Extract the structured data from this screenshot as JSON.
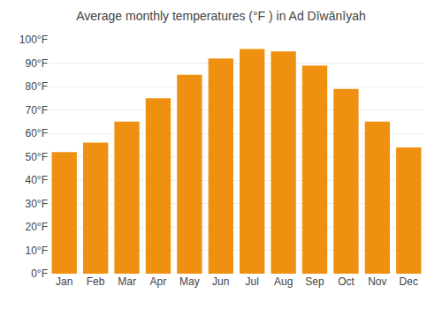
{
  "chart_data": {
    "type": "bar",
    "title": "Average monthly temperatures (°F ) in Ad Dīwānīyah",
    "categories": [
      "Jan",
      "Feb",
      "Mar",
      "Apr",
      "May",
      "Jun",
      "Jul",
      "Aug",
      "Sep",
      "Oct",
      "Nov",
      "Dec"
    ],
    "values": [
      52,
      56,
      65,
      75,
      85,
      92,
      96,
      95,
      89,
      79,
      65,
      54
    ],
    "color": "#F09010",
    "ylim": [
      0,
      100
    ],
    "yticks": [
      {
        "value": 0,
        "label": "0°F"
      },
      {
        "value": 10,
        "label": "10°F"
      },
      {
        "value": 20,
        "label": "20°F"
      },
      {
        "value": 30,
        "label": "30°F"
      },
      {
        "value": 40,
        "label": "40°F"
      },
      {
        "value": 50,
        "label": "50°F"
      },
      {
        "value": 60,
        "label": "60°F"
      },
      {
        "value": 70,
        "label": "70°F"
      },
      {
        "value": 80,
        "label": "80°F"
      },
      {
        "value": 90,
        "label": "90°F"
      },
      {
        "value": 100,
        "label": "100°F"
      }
    ],
    "grid": true
  }
}
